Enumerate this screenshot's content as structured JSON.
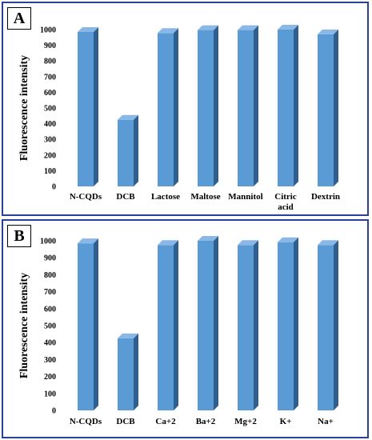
{
  "colors": {
    "bar_front": "#5b9bd5",
    "bar_side": "#2e5f8f",
    "bar_top": "#8ab8e6",
    "frame": "#2a3f99"
  },
  "chart_data": [
    {
      "panel_label": "A",
      "type": "bar",
      "ylabel": "Fluorescence intensity",
      "ylim": [
        0,
        1000
      ],
      "yticks": [
        0,
        100,
        200,
        300,
        400,
        500,
        600,
        700,
        800,
        900,
        1000
      ],
      "categories": [
        "N-CQDs",
        "DCB",
        "Lactose",
        "Maltose",
        "Mannitol",
        "Citric acid",
        "Dextrin"
      ],
      "category_lines": [
        [
          "N-CQDs"
        ],
        [
          "DCB"
        ],
        [
          "Lactose"
        ],
        [
          "Maltose"
        ],
        [
          "Mannitol"
        ],
        [
          "Citric",
          "acid"
        ],
        [
          "Dextrin"
        ]
      ],
      "values": [
        985,
        425,
        978,
        997,
        997,
        1000,
        970
      ]
    },
    {
      "panel_label": "B",
      "type": "bar",
      "ylabel": "Fluorescence intensity",
      "ylim": [
        0,
        1000
      ],
      "yticks": [
        0,
        100,
        200,
        300,
        400,
        500,
        600,
        700,
        800,
        900,
        1000
      ],
      "categories": [
        "N-CQDs",
        "DCB",
        "Ca+2",
        "Ba+2",
        "Mg+2",
        "K+",
        "Na+"
      ],
      "category_lines": [
        [
          "N-CQDs"
        ],
        [
          "DCB"
        ],
        [
          "Ca+2"
        ],
        [
          "Ba+2"
        ],
        [
          "Mg+2"
        ],
        [
          "K+"
        ],
        [
          "Na+"
        ]
      ],
      "values": [
        985,
        425,
        975,
        1000,
        975,
        992,
        975
      ]
    }
  ]
}
